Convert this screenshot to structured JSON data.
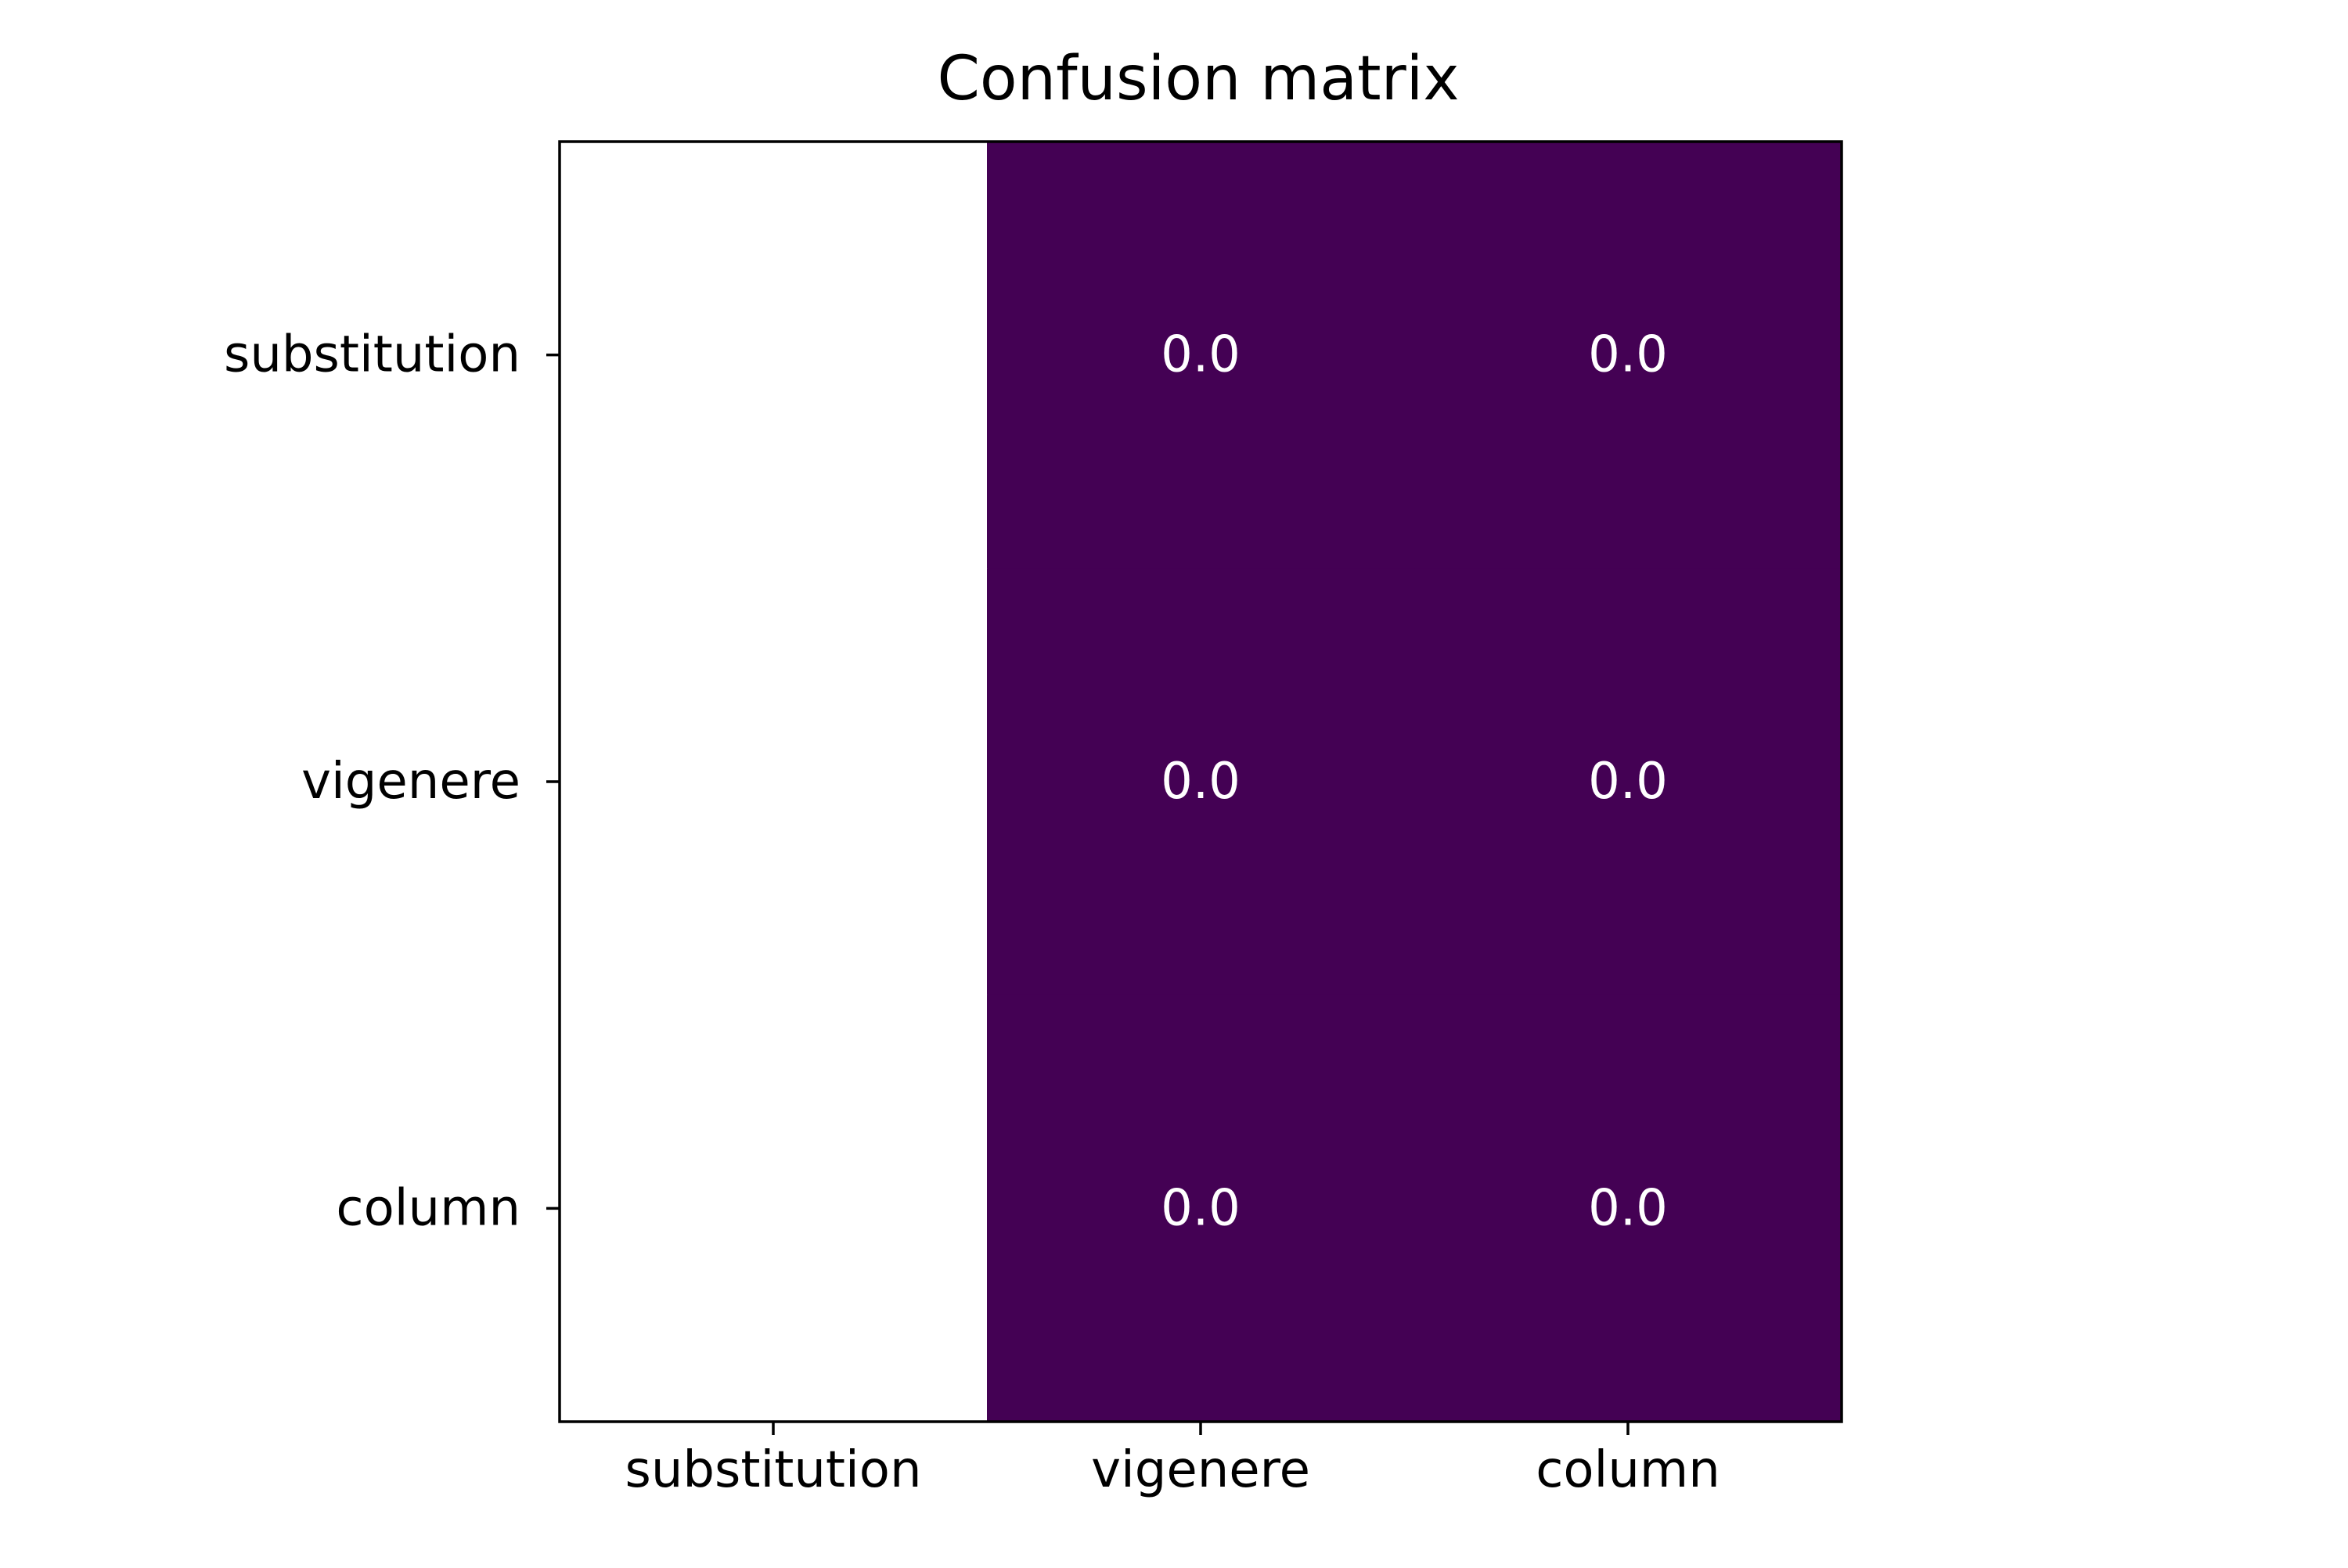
{
  "chart_data": {
    "type": "heatmap",
    "title": "Confusion matrix",
    "xlabel": "",
    "ylabel": "",
    "x_categories": [
      "substitution",
      "vigenere",
      "column"
    ],
    "y_categories": [
      "substitution",
      "vigenere",
      "column"
    ],
    "cells": [
      {
        "row": 0,
        "col": 0,
        "value": null,
        "label": "",
        "color": "#ffffff"
      },
      {
        "row": 0,
        "col": 1,
        "value": 0.0,
        "label": "0.0",
        "color": "#440154"
      },
      {
        "row": 0,
        "col": 2,
        "value": 0.0,
        "label": "0.0",
        "color": "#440154"
      },
      {
        "row": 1,
        "col": 0,
        "value": null,
        "label": "",
        "color": "#ffffff"
      },
      {
        "row": 1,
        "col": 1,
        "value": 0.0,
        "label": "0.0",
        "color": "#440154"
      },
      {
        "row": 1,
        "col": 2,
        "value": 0.0,
        "label": "0.0",
        "color": "#440154"
      },
      {
        "row": 2,
        "col": 0,
        "value": null,
        "label": "",
        "color": "#ffffff"
      },
      {
        "row": 2,
        "col": 1,
        "value": 0.0,
        "label": "0.0",
        "color": "#440154"
      },
      {
        "row": 2,
        "col": 2,
        "value": 0.0,
        "label": "0.0",
        "color": "#440154"
      }
    ],
    "colormap": "viridis",
    "cell_label_color": "#ffffff",
    "grid": false,
    "legend": "none"
  }
}
